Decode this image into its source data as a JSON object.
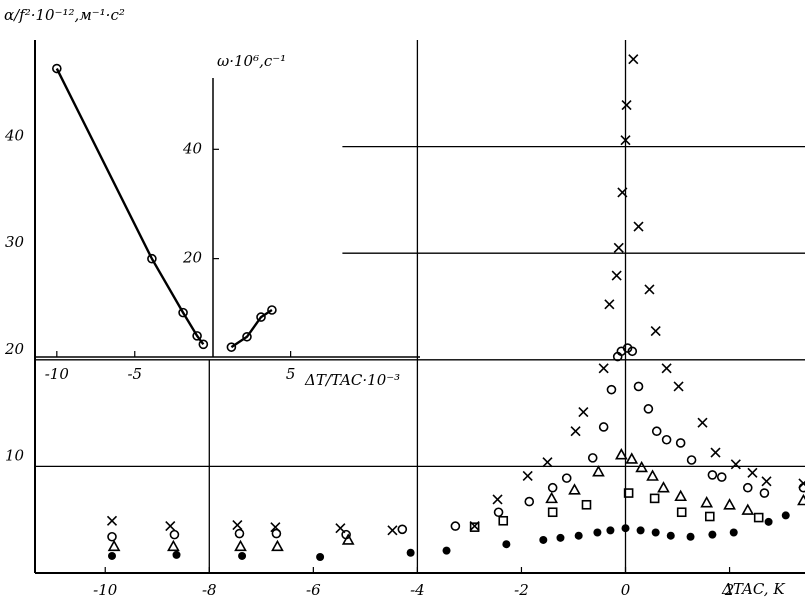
{
  "chart_data": [
    {
      "type": "scatter",
      "ylabel": "α/f²·10⁻¹²,м⁻¹·с²",
      "xlabel": "ΔTAC, K",
      "xlim": [
        -11.35,
        3.45
      ],
      "ylim": [
        0,
        50
      ],
      "xticks": [
        -10,
        -8,
        -6,
        -4,
        -2,
        0,
        2
      ],
      "yticks": [
        10,
        20,
        30,
        40
      ],
      "grid": true,
      "series": [
        {
          "marker": "x",
          "color": "#000000",
          "x": [
            -9.87,
            -8.75,
            -7.46,
            -6.73,
            -5.48,
            -4.48,
            -2.9,
            -2.46,
            -1.88,
            -1.5,
            -0.96,
            -0.81,
            -0.42,
            -0.31,
            -0.17,
            -0.13,
            -0.06,
            0,
            0.02,
            0.15,
            0.25,
            0.46,
            0.58,
            0.79,
            1.02,
            1.48,
            1.73,
            2.12,
            2.44,
            2.71,
            3.42
          ],
          "values": [
            4.9,
            4.4,
            4.5,
            4.3,
            4.2,
            4.0,
            4.4,
            6.9,
            9.1,
            10.4,
            13.3,
            15.1,
            19.2,
            25.2,
            27.9,
            30.5,
            35.7,
            40.6,
            43.9,
            48.2,
            32.5,
            26.6,
            22.7,
            19.2,
            17.5,
            14.1,
            11.3,
            10.2,
            9.4,
            8.6,
            8.4
          ]
        },
        {
          "marker": "o",
          "color": "#000000",
          "x": [
            -9.87,
            -8.67,
            -7.42,
            -6.71,
            -5.37,
            -4.29,
            -3.27,
            -2.44,
            -1.85,
            -1.4,
            -1.13,
            -0.63,
            -0.42,
            -0.27,
            -0.15,
            -0.08,
            0.04,
            0.13,
            0.25,
            0.44,
            0.6,
            0.79,
            1.06,
            1.27,
            1.67,
            1.85,
            2.35,
            2.67,
            3.42
          ],
          "values": [
            3.4,
            3.6,
            3.7,
            3.7,
            3.6,
            4.1,
            4.4,
            5.7,
            6.7,
            8.0,
            8.9,
            10.8,
            13.7,
            17.2,
            20.3,
            20.8,
            21.1,
            20.8,
            17.5,
            15.4,
            13.3,
            12.5,
            12.2,
            10.6,
            9.2,
            9.0,
            8.0,
            7.5,
            8.0
          ]
        },
        {
          "marker": "^",
          "color": "#000000",
          "x": [
            -9.83,
            -8.69,
            -7.4,
            -6.69,
            -5.33,
            -1.42,
            -0.98,
            -0.52,
            -0.08,
            0.12,
            0.31,
            0.52,
            0.73,
            1.06,
            1.56,
            2.0,
            2.35,
            3.42
          ],
          "values": [
            2.5,
            2.5,
            2.5,
            2.5,
            3.1,
            7.0,
            7.8,
            9.5,
            11.1,
            10.7,
            9.9,
            9.1,
            8.0,
            7.2,
            6.6,
            6.4,
            5.9,
            6.8
          ]
        },
        {
          "marker": "s",
          "color": "#000000",
          "x": [
            -2.9,
            -2.35,
            -1.4,
            -0.75,
            0.06,
            0.56,
            1.08,
            1.62,
            2.56
          ],
          "values": [
            4.3,
            4.9,
            5.7,
            6.4,
            7.5,
            7.0,
            5.7,
            5.3,
            5.2
          ]
        },
        {
          "marker": "dot",
          "color": "#000000",
          "x": [
            -9.87,
            -8.63,
            -7.37,
            -5.87,
            -4.13,
            -3.44,
            -2.29,
            -1.58,
            -1.25,
            -0.9,
            -0.54,
            -0.29,
            0,
            0.29,
            0.58,
            0.87,
            1.25,
            1.67,
            2.08,
            2.75,
            3.08
          ],
          "values": [
            1.6,
            1.7,
            1.6,
            1.5,
            1.9,
            2.1,
            2.7,
            3.1,
            3.3,
            3.5,
            3.8,
            4.0,
            4.2,
            4.0,
            3.8,
            3.5,
            3.4,
            3.6,
            3.8,
            4.8,
            5.4
          ]
        }
      ]
    },
    {
      "type": "scatter",
      "xlabel": "ΔT/TAC·10⁻³",
      "y2label": "ω·10⁶,с⁻¹",
      "xlim": [
        -11.4,
        13.3
      ],
      "ylim": [
        20,
        50
      ],
      "y2lim": [
        2,
        60
      ],
      "xticks": [
        -10,
        -5,
        5
      ],
      "y2ticks": [
        20,
        40
      ],
      "series": [
        {
          "marker": "o",
          "color": "#000000",
          "x": [
            -10,
            -3.9,
            -1.9,
            -1.0,
            -0.6
          ],
          "values": [
            47.3,
            29.3,
            24.2,
            22.0,
            21.2
          ]
        },
        {
          "marker": "o",
          "color": "#000000",
          "axis": "y2",
          "x": [
            1.2,
            2.2,
            3.1,
            3.8
          ],
          "values": [
            3.8,
            5.7,
            9.3,
            10.6
          ]
        }
      ]
    }
  ]
}
